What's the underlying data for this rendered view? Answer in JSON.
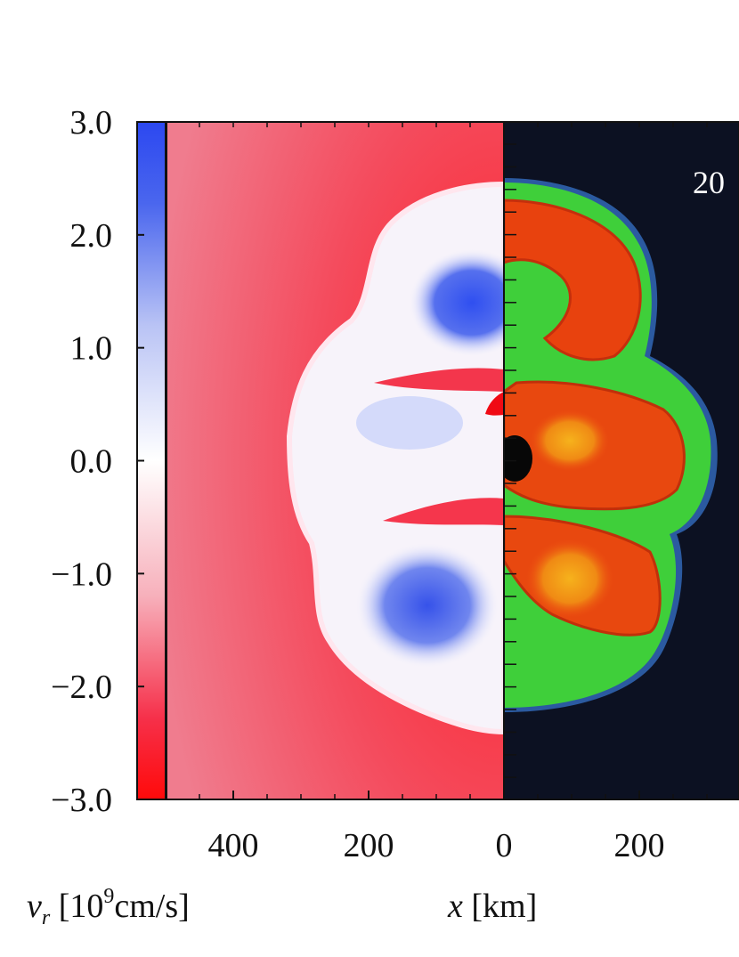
{
  "chart_data": {
    "type": "heatmap",
    "colorbar": {
      "ticks": [
        "3.0",
        "2.0",
        "1.0",
        "0.0",
        "−1.0",
        "−2.0",
        "−3.0"
      ],
      "range": [
        -3.0,
        3.0
      ],
      "colors": {
        "high": "#2f4ff0",
        "mid": "#ffffff",
        "low": "#ff1010"
      }
    },
    "x_ticks": [
      "400",
      "200",
      "0",
      "200"
    ],
    "x_range_left": [
      500,
      0
    ],
    "labels": {
      "colorbar_var": "v",
      "colorbar_sub": "r",
      "colorbar_unit_pre": " [10",
      "colorbar_exp": "9",
      "colorbar_unit_post": "cm/s]",
      "x_var": "x",
      "x_unit": " [km]"
    },
    "panel_text": "20",
    "colors": {
      "background_left": "#f25868",
      "background_right": "#0c1122",
      "green": "#3fcf3a",
      "orange": "#ec4a10",
      "yellow": "#f3a21a",
      "blue": "#3653ec"
    }
  }
}
